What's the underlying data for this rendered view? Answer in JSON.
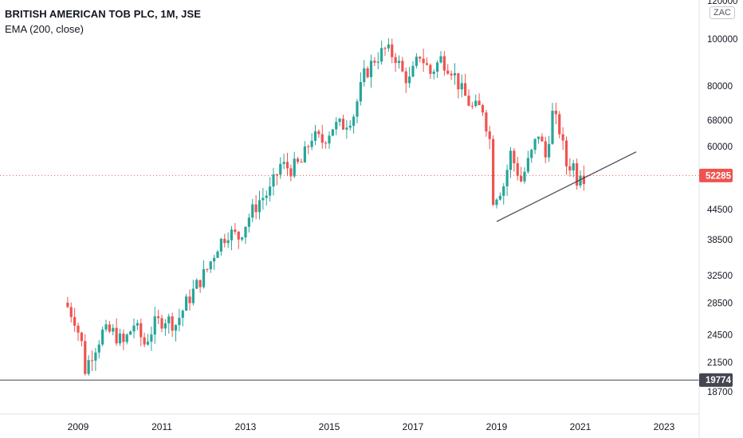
{
  "legend": {
    "title": "BRITISH AMERICAN TOB PLC, 1M, JSE",
    "indicator": "EMA (200, close)"
  },
  "currency_button": "ZAC",
  "chart_data": {
    "type": "candlestick",
    "title": "BRITISH AMERICAN TOB PLC, 1M, JSE",
    "scale": "log",
    "grid": false,
    "colors": {
      "up": "#26a69a",
      "down": "#ef5350",
      "trendline": "#434651",
      "hline": "#434651",
      "price_line": "#ef5350",
      "price_tag": "#ef5350",
      "hline_tag": "#434651"
    },
    "y_ticks": [
      18700,
      21500,
      24500,
      28500,
      32500,
      38500,
      44500,
      52285,
      60000,
      68000,
      80000,
      100000,
      120000
    ],
    "y_tick_labels": [
      "18700",
      "21500",
      "24500",
      "28500",
      "32500",
      "38500",
      "44500",
      "",
      "60000",
      "68000",
      "80000",
      "100000",
      "120000"
    ],
    "x_ticks": [
      "2009",
      "2011",
      "2013",
      "2015",
      "2017",
      "2019",
      "2021",
      "2023"
    ],
    "last_price": {
      "value": 52285,
      "label": "52285"
    },
    "horizontal_line": {
      "value": 19774,
      "label": "19774"
    },
    "trendline": {
      "start": {
        "date": "2019-01",
        "value": 42000
      },
      "end": {
        "date": "2022-05",
        "value": 58500
      }
    },
    "anchors": [
      [
        "2008-10",
        28000
      ],
      [
        "2008-12",
        26500
      ],
      [
        "2009-02",
        23500
      ],
      [
        "2009-03",
        20800
      ],
      [
        "2009-05",
        22500
      ],
      [
        "2009-08",
        24800
      ],
      [
        "2009-11",
        24800
      ],
      [
        "2010-02",
        23500
      ],
      [
        "2010-05",
        25800
      ],
      [
        "2010-08",
        23500
      ],
      [
        "2010-11",
        25800
      ],
      [
        "2011-02",
        26500
      ],
      [
        "2011-05",
        25800
      ],
      [
        "2011-08",
        28500
      ],
      [
        "2011-11",
        31000
      ],
      [
        "2012-02",
        33500
      ],
      [
        "2012-05",
        37500
      ],
      [
        "2012-08",
        40000
      ],
      [
        "2012-11",
        39000
      ],
      [
        "2013-02",
        43000
      ],
      [
        "2013-05",
        46500
      ],
      [
        "2013-08",
        48500
      ],
      [
        "2013-11",
        55000
      ],
      [
        "2014-02",
        54000
      ],
      [
        "2014-05",
        55500
      ],
      [
        "2014-08",
        63000
      ],
      [
        "2014-11",
        61500
      ],
      [
        "2015-02",
        66000
      ],
      [
        "2015-05",
        66500
      ],
      [
        "2015-08",
        70000
      ],
      [
        "2015-11",
        84000
      ],
      [
        "2016-02",
        91000
      ],
      [
        "2016-05",
        95000
      ],
      [
        "2016-08",
        92000
      ],
      [
        "2016-10",
        85000
      ],
      [
        "2016-12",
        82000
      ],
      [
        "2017-03",
        93000
      ],
      [
        "2017-06",
        85000
      ],
      [
        "2017-09",
        91000
      ],
      [
        "2017-12",
        87000
      ],
      [
        "2018-03",
        78000
      ],
      [
        "2018-06",
        72000
      ],
      [
        "2018-09",
        72000
      ],
      [
        "2018-11",
        62000
      ],
      [
        "2018-12",
        47000
      ],
      [
        "2019-03",
        50000
      ],
      [
        "2019-05",
        58000
      ],
      [
        "2019-08",
        51000
      ],
      [
        "2019-11",
        58000
      ],
      [
        "2020-01",
        64000
      ],
      [
        "2020-03",
        57000
      ],
      [
        "2020-05",
        70000
      ],
      [
        "2020-07",
        65000
      ],
      [
        "2020-09",
        55000
      ],
      [
        "2020-11",
        55000
      ],
      [
        "2020-12",
        51500
      ],
      [
        "2021-01",
        54000
      ],
      [
        "2021-02",
        52285
      ]
    ]
  }
}
